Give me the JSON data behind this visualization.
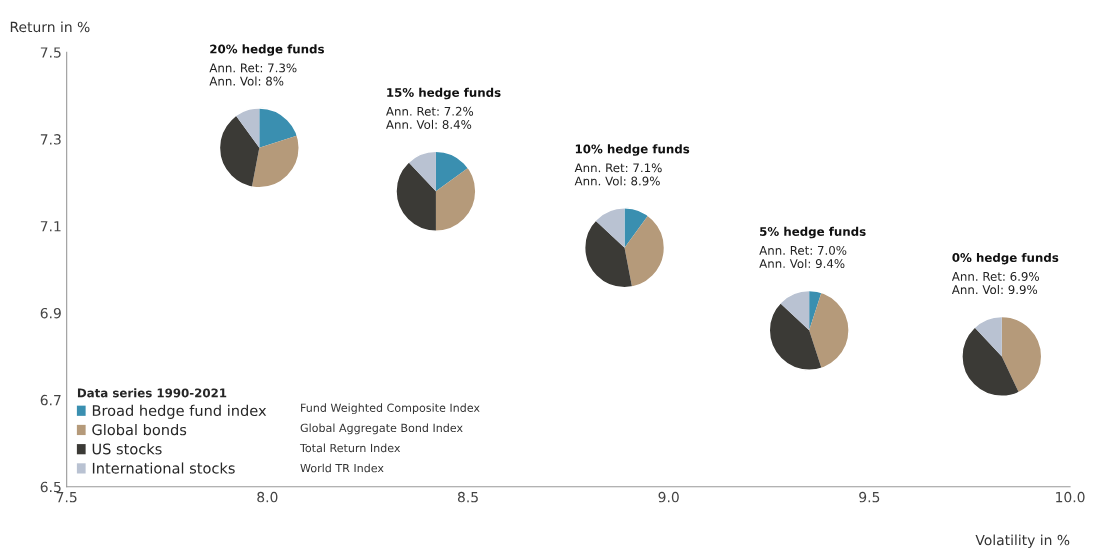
{
  "chart_data": [
    {
      "type": "scatter",
      "xlabel": "Volatility in %",
      "ylabel": "Return in %",
      "x": [
        7.98,
        8.42,
        8.89,
        9.35,
        9.83
      ],
      "values": [
        7.28,
        7.18,
        7.05,
        6.86,
        6.8
      ],
      "xlim": [
        7.5,
        10
      ],
      "xticks": [
        7.5,
        {
          "value": 8,
          "label": "8.0"
        },
        8.5,
        {
          "value": 9,
          "label": "9.0"
        },
        9.5,
        {
          "value": 10,
          "label": "10.0"
        }
      ],
      "ylim": [
        6.5,
        7.5
      ],
      "yticks": [
        6.5,
        6.7,
        6.9,
        7.1,
        7.3,
        7.5
      ],
      "annotations": [
        "Fund Weighted Composite Index",
        "Global Aggregate Bond Index",
        "Total Return Index",
        "World TR Index"
      ]
    },
    {
      "type": "pie",
      "title": "20% hedge funds",
      "annotations": [
        "Ann. Ret: 7.3%",
        "Ann. Vol: 8%"
      ],
      "categories": [
        "Broad hedge fund index",
        "Global bonds",
        "US stocks",
        "International stocks"
      ],
      "values": [
        20,
        33,
        37,
        10
      ],
      "colors": [
        "#3a8fb0",
        "#b59a7a",
        "#3b3a36",
        "#b9c2d2"
      ],
      "legend": "bottom left",
      "legend_title": "Data series 1990-2021"
    },
    {
      "type": "pie",
      "title": "15% hedge funds",
      "annotations": [
        "Ann. Ret: 7.2%",
        "Ann. Vol: 8.4%"
      ],
      "values": [
        15,
        35,
        38,
        12
      ],
      "colors": [
        "#3a8fb0",
        "#b59a7a",
        "#3b3a36",
        "#b9c2d2"
      ]
    },
    {
      "type": "pie",
      "title": "10% hedge funds",
      "annotations": [
        "Ann. Ret: 7.1%",
        "Ann. Vol: 8.9%"
      ],
      "values": [
        10,
        37,
        40,
        13
      ],
      "colors": [
        "#3a8fb0",
        "#b59a7a",
        "#3b3a36",
        "#b9c2d2"
      ]
    },
    {
      "type": "pie",
      "title": "5% hedge funds",
      "annotations": [
        "Ann. Ret: 7.0%",
        "Ann. Vol: 9.4%"
      ],
      "values": [
        5,
        40,
        42,
        13
      ],
      "colors": [
        "#3a8fb0",
        "#b59a7a",
        "#3b3a36",
        "#b9c2d2"
      ]
    },
    {
      "type": "pie",
      "title": "0% hedge funds",
      "annotations": [
        "Ann. Ret: 6.9%",
        "Ann. Vol: 9.9%"
      ],
      "values": [
        0,
        43,
        45,
        12
      ],
      "colors": [
        "#3a8fb0",
        "#b59a7a",
        "#3b3a36",
        "#b9c2d2"
      ]
    }
  ]
}
